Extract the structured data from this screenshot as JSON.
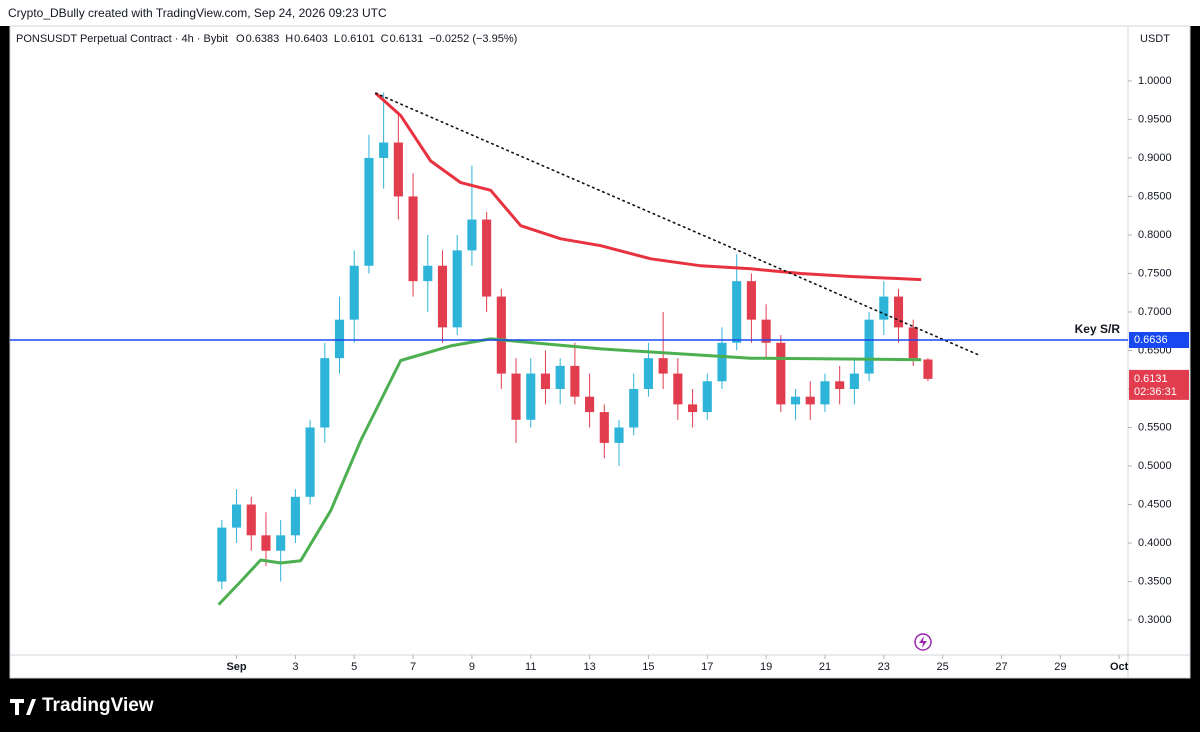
{
  "header": {
    "credit": "Crypto_DBully created with TradingView.com, Sep 24, 2026 09:23 UTC",
    "symbol": "PONSUSDT Perpetual Contract · 4h · Bybit",
    "ohlc": [
      {
        "key": "O",
        "value": "0.6383"
      },
      {
        "key": "H",
        "value": "0.6403"
      },
      {
        "key": "L",
        "value": "0.6101"
      },
      {
        "key": "C",
        "value": "0.6131"
      }
    ],
    "change": "−0.0252 (−3.95%)",
    "currency": "USDT",
    "countdown": "02:36:31",
    "brand": "TradingView"
  },
  "chart_data": {
    "type": "candlestick",
    "x": [
      0.5,
      1,
      1.5,
      2,
      2.5,
      3,
      3.5,
      4,
      4.5,
      5,
      5.5,
      6,
      6.5,
      7,
      7.5,
      8,
      8.5,
      9,
      9.5,
      10,
      10.5,
      11,
      11.5,
      12,
      12.5,
      13,
      13.5,
      14,
      14.5,
      15,
      15.5,
      16,
      16.5,
      17,
      17.5,
      18,
      18.5,
      19,
      19.5,
      20,
      20.5,
      21,
      21.5,
      22,
      22.5,
      23,
      23.5,
      24,
      24.5
    ],
    "open": [
      0.35,
      0.42,
      0.45,
      0.41,
      0.39,
      0.41,
      0.46,
      0.55,
      0.64,
      0.69,
      0.76,
      0.9,
      0.92,
      0.85,
      0.74,
      0.76,
      0.68,
      0.78,
      0.82,
      0.72,
      0.62,
      0.56,
      0.62,
      0.6,
      0.63,
      0.59,
      0.57,
      0.53,
      0.55,
      0.6,
      0.64,
      0.62,
      0.58,
      0.57,
      0.61,
      0.66,
      0.74,
      0.69,
      0.66,
      0.58,
      0.59,
      0.58,
      0.61,
      0.6,
      0.62,
      0.69,
      0.72,
      0.68,
      0.6383
    ],
    "high": [
      0.43,
      0.47,
      0.46,
      0.44,
      0.43,
      0.47,
      0.56,
      0.66,
      0.72,
      0.78,
      0.93,
      0.985,
      0.96,
      0.88,
      0.8,
      0.78,
      0.8,
      0.89,
      0.83,
      0.73,
      0.64,
      0.64,
      0.65,
      0.64,
      0.66,
      0.62,
      0.58,
      0.56,
      0.62,
      0.66,
      0.7,
      0.64,
      0.6,
      0.62,
      0.68,
      0.775,
      0.75,
      0.71,
      0.67,
      0.6,
      0.61,
      0.62,
      0.63,
      0.64,
      0.7,
      0.74,
      0.73,
      0.69,
      0.6403
    ],
    "low": [
      0.34,
      0.4,
      0.39,
      0.37,
      0.35,
      0.4,
      0.45,
      0.53,
      0.62,
      0.66,
      0.75,
      0.86,
      0.82,
      0.72,
      0.7,
      0.66,
      0.67,
      0.76,
      0.7,
      0.6,
      0.53,
      0.55,
      0.58,
      0.58,
      0.58,
      0.55,
      0.51,
      0.5,
      0.54,
      0.59,
      0.6,
      0.56,
      0.55,
      0.56,
      0.6,
      0.65,
      0.66,
      0.64,
      0.57,
      0.56,
      0.56,
      0.57,
      0.58,
      0.58,
      0.61,
      0.67,
      0.66,
      0.63,
      0.6101
    ],
    "close": [
      0.42,
      0.45,
      0.41,
      0.39,
      0.41,
      0.46,
      0.55,
      0.64,
      0.69,
      0.76,
      0.9,
      0.92,
      0.85,
      0.74,
      0.76,
      0.68,
      0.78,
      0.82,
      0.72,
      0.62,
      0.56,
      0.62,
      0.6,
      0.63,
      0.59,
      0.57,
      0.53,
      0.55,
      0.6,
      0.64,
      0.62,
      0.58,
      0.57,
      0.61,
      0.66,
      0.74,
      0.69,
      0.66,
      0.58,
      0.59,
      0.58,
      0.61,
      0.6,
      0.62,
      0.69,
      0.72,
      0.68,
      0.64,
      0.6131
    ],
    "up_color": "#2eb3d9",
    "down_color": "#e23d4e",
    "lines": [
      {
        "color": "#e8323f",
        "x": [
          5.73,
          6.58,
          7.6,
          8.62,
          9.64,
          10.66,
          12.02,
          13.38,
          15.08,
          16.78,
          18.48,
          20.18,
          21.88,
          24.27
        ],
        "values": [
          0.984,
          0.955,
          0.896,
          0.868,
          0.858,
          0.812,
          0.795,
          0.786,
          0.769,
          0.76,
          0.756,
          0.75,
          0.746,
          0.742
        ]
      },
      {
        "color": "#4caf50",
        "x": [
          0.39,
          1.14,
          1.82,
          2.5,
          3.18,
          4.2,
          5.22,
          6.58,
          8.28,
          9.64,
          13.38,
          18.48,
          24.27
        ],
        "values": [
          0.32,
          0.35,
          0.378,
          0.374,
          0.377,
          0.442,
          0.533,
          0.637,
          0.656,
          0.665,
          0.652,
          0.64,
          0.638
        ]
      }
    ],
    "trendline": {
      "color": "#111111",
      "x": [
        5.73,
        26.3
      ],
      "values": [
        0.984,
        0.643
      ]
    },
    "hline": {
      "value": 0.6636,
      "label": "Key S/R",
      "color": "#1848f0"
    },
    "xlim": [
      -6.7,
      31.3
    ],
    "xticks": [
      {
        "value": 1,
        "label": "Sep"
      },
      3,
      5,
      7,
      9,
      11,
      13,
      15,
      17,
      19,
      21,
      23,
      25,
      27,
      29,
      {
        "value": 31,
        "label": "Oct"
      }
    ],
    "ylim": [
      0.2546,
      1.0713
    ],
    "yticks": [
      {
        "value": 0.3,
        "label": "0.3000"
      },
      {
        "value": 0.35,
        "label": "0.3500"
      },
      {
        "value": 0.4,
        "label": "0.4000"
      },
      {
        "value": 0.45,
        "label": "0.4500"
      },
      {
        "value": 0.5,
        "label": "0.5000"
      },
      {
        "value": 0.55,
        "label": "0.5500"
      },
      {
        "value": 0.6,
        "label": "0.6000"
      },
      {
        "value": 0.65,
        "label": "0.6500"
      },
      {
        "value": 0.7,
        "label": "0.7000"
      },
      {
        "value": 0.75,
        "label": "0.7500"
      },
      {
        "value": 0.8,
        "label": "0.8000"
      },
      {
        "value": 0.85,
        "label": "0.8500"
      },
      {
        "value": 0.9,
        "label": "0.9000"
      },
      {
        "value": 0.95,
        "label": "0.9500"
      },
      {
        "value": 1,
        "label": "1.0000"
      }
    ]
  }
}
